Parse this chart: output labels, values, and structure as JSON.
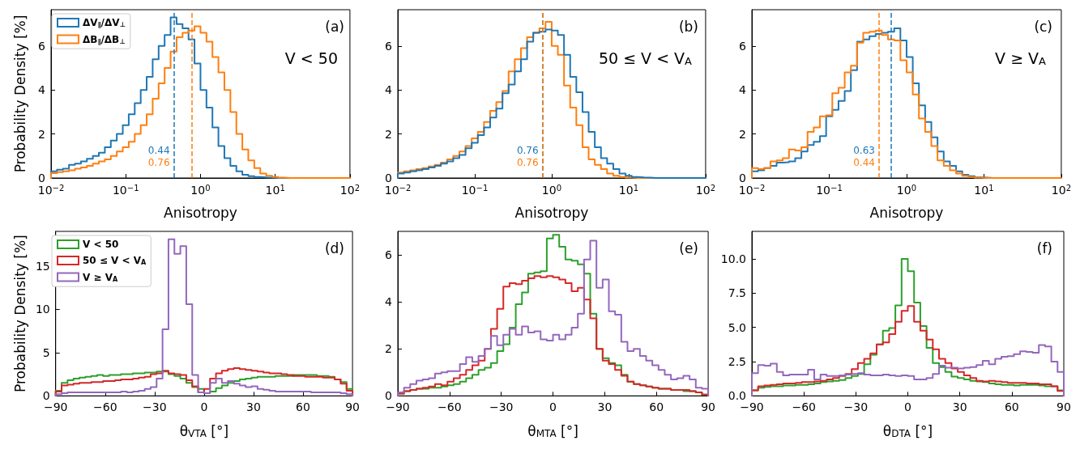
{
  "chart_data": [
    {
      "type": "histogram",
      "ylabel": "Probability Density [%]",
      "xlabel": "Anisotropy",
      "log": "x",
      "legend": "top left",
      "xlim": [
        0.01,
        100
      ],
      "xticks": [
        {
          "value": 0.01,
          "label": "10$^{−2}$"
        },
        {
          "value": 0.1,
          "label": "10$^{−1}$"
        },
        {
          "value": 1,
          "label": "10$^{0}$"
        },
        {
          "value": 10,
          "label": "10$^{1}$"
        },
        {
          "value": 100,
          "label": "10$^{2}$"
        }
      ],
      "ylim": [
        0,
        7.65
      ],
      "yticks": [
        0,
        2,
        4,
        6
      ],
      "bins": [
        0.01,
        0.01202,
        0.01445,
        0.01738,
        0.02089,
        0.02512,
        0.0302,
        0.03631,
        0.04365,
        0.05248,
        0.0631,
        0.07586,
        0.0912,
        0.1096,
        0.1318,
        0.1585,
        0.1905,
        0.2291,
        0.2754,
        0.3311,
        0.3981,
        0.4786,
        0.5754,
        0.6918,
        0.8318,
        1,
        1.202,
        1.445,
        1.738,
        2.089,
        2.512,
        3.02,
        3.631,
        4.365,
        5.248,
        6.31,
        7.586,
        9.12,
        10.96,
        13.18,
        15.85,
        19.05,
        22.91,
        27.54,
        33.11,
        39.81,
        47.86,
        57.54,
        69.18,
        83.18,
        100
      ],
      "series": [
        {
          "name": "ΔV$_{∥}$/ΔV$_{⊥}$",
          "color": "#1f77b4",
          "values": [
            0.3,
            0.38,
            0.42,
            0.6,
            0.65,
            0.75,
            0.87,
            1.0,
            1.15,
            1.4,
            1.7,
            2.0,
            2.4,
            2.9,
            3.4,
            4.0,
            4.6,
            5.4,
            6.0,
            6.5,
            7.3,
            7.0,
            6.8,
            6.3,
            5.2,
            4.0,
            3.2,
            2.3,
            1.45,
            0.9,
            0.55,
            0.3,
            0.15,
            0.08,
            0.05,
            0.03,
            0.02,
            0,
            0,
            0,
            0,
            0,
            0,
            0,
            0,
            0,
            0,
            0,
            0,
            0
          ]
        },
        {
          "name": "ΔB$_{∥}$/ΔB$_{⊥}$",
          "color": "#ff7f0e",
          "values": [
            0.22,
            0.27,
            0.3,
            0.35,
            0.42,
            0.48,
            0.55,
            0.65,
            0.75,
            0.85,
            1.0,
            1.2,
            1.4,
            1.65,
            2.0,
            2.4,
            2.9,
            3.6,
            4.3,
            5.0,
            5.75,
            6.4,
            6.6,
            6.7,
            6.9,
            6.6,
            6.2,
            5.5,
            4.8,
            4.0,
            3.0,
            2.0,
            1.3,
            0.8,
            0.45,
            0.2,
            0.1,
            0.05,
            0.02,
            0,
            0,
            0,
            0,
            0,
            0,
            0,
            0,
            0,
            0,
            0
          ]
        }
      ],
      "ref_lines": [
        {
          "axis": "x",
          "value": 0.44,
          "label": "0.44",
          "color": "#1f77b4",
          "line_style": "dashed"
        },
        {
          "axis": "x",
          "value": 0.76,
          "label": "0.76",
          "color": "#ff7f0e",
          "line_style": "dashed"
        }
      ],
      "annotations": [
        "(a)",
        "V < 50"
      ]
    },
    {
      "type": "histogram",
      "xlabel": "Anisotropy",
      "log": "x",
      "xlim": [
        0.01,
        100
      ],
      "xticks": [
        {
          "value": 0.01,
          "label": "10$^{−2}$"
        },
        {
          "value": 0.1,
          "label": "10$^{−1}$"
        },
        {
          "value": 1,
          "label": "10$^{0}$"
        },
        {
          "value": 10,
          "label": "10$^{1}$"
        },
        {
          "value": 100,
          "label": "10$^{2}$"
        }
      ],
      "ylim": [
        0,
        7.65
      ],
      "yticks": [
        0,
        2,
        4,
        6
      ],
      "bins": [
        0.01,
        0.01202,
        0.01445,
        0.01738,
        0.02089,
        0.02512,
        0.0302,
        0.03631,
        0.04365,
        0.05248,
        0.0631,
        0.07586,
        0.0912,
        0.1096,
        0.1318,
        0.1585,
        0.1905,
        0.2291,
        0.2754,
        0.3311,
        0.3981,
        0.4786,
        0.5754,
        0.6918,
        0.8318,
        1,
        1.202,
        1.445,
        1.738,
        2.089,
        2.512,
        3.02,
        3.631,
        4.365,
        5.248,
        6.31,
        7.586,
        9.12,
        10.96,
        13.18,
        15.85,
        19.05,
        22.91,
        27.54,
        33.11,
        39.81,
        47.86,
        57.54,
        69.18,
        83.18,
        100
      ],
      "series": [
        {
          "color": "#ff7f0e",
          "values": [
            0.25,
            0.3,
            0.35,
            0.4,
            0.45,
            0.52,
            0.6,
            0.7,
            0.85,
            1.0,
            1.2,
            1.45,
            1.8,
            2.1,
            2.55,
            3.05,
            3.45,
            3.95,
            4.85,
            5.4,
            5.9,
            6.4,
            6.6,
            6.8,
            7.1,
            6.0,
            5.6,
            4.2,
            3.2,
            2.4,
            1.4,
            0.85,
            0.6,
            0.4,
            0.2,
            0.1,
            0.05,
            0.02,
            0,
            0,
            0,
            0,
            0,
            0,
            0,
            0,
            0,
            0,
            0,
            0
          ]
        },
        {
          "color": "#1f77b4",
          "values": [
            0.2,
            0.25,
            0.3,
            0.35,
            0.4,
            0.48,
            0.55,
            0.65,
            0.75,
            0.9,
            1.05,
            1.35,
            1.6,
            1.95,
            2.3,
            2.75,
            3.15,
            3.85,
            4.25,
            4.85,
            5.4,
            6.2,
            6.6,
            6.65,
            6.75,
            6.7,
            6.5,
            5.6,
            4.6,
            3.9,
            3.0,
            2.1,
            1.4,
            0.9,
            0.65,
            0.4,
            0.2,
            0.1,
            0.05,
            0.03,
            0.02,
            0,
            0,
            0,
            0,
            0,
            0,
            0,
            0,
            0
          ]
        }
      ],
      "ref_lines": [
        {
          "axis": "x",
          "value": 0.76,
          "label": "0.76",
          "color": "#1f77b4",
          "line_style": "dashed"
        },
        {
          "axis": "x",
          "value": 0.76,
          "label": "0.76",
          "color": "#ff7f0e",
          "line_style": "dashed"
        }
      ],
      "annotations": [
        "(b)",
        "50 ≤ V < V$_{A}$"
      ]
    },
    {
      "type": "histogram",
      "xlabel": "Anisotropy",
      "log": "x",
      "xlim": [
        0.01,
        100
      ],
      "xticks": [
        {
          "value": 0.01,
          "label": "10$^{−2}$"
        },
        {
          "value": 0.1,
          "label": "10$^{−1}$"
        },
        {
          "value": 1,
          "label": "10$^{0}$"
        },
        {
          "value": 10,
          "label": "10$^{1}$"
        },
        {
          "value": 100,
          "label": "10$^{2}$"
        }
      ],
      "ylim": [
        0,
        7.65
      ],
      "yticks": [
        0,
        2,
        4,
        6
      ],
      "bins": [
        0.01,
        0.01202,
        0.01445,
        0.01738,
        0.02089,
        0.02512,
        0.0302,
        0.03631,
        0.04365,
        0.05248,
        0.0631,
        0.07586,
        0.0912,
        0.1096,
        0.1318,
        0.1585,
        0.1905,
        0.2291,
        0.2754,
        0.3311,
        0.3981,
        0.4786,
        0.5754,
        0.6918,
        0.8318,
        1,
        1.202,
        1.445,
        1.738,
        2.089,
        2.512,
        3.02,
        3.631,
        4.365,
        5.248,
        6.31,
        7.586,
        9.12,
        10.96,
        13.18,
        15.85,
        19.05,
        22.91,
        27.54,
        33.11,
        39.81,
        47.86,
        57.54,
        69.18,
        83.18,
        100
      ],
      "series": [
        {
          "color": "#1f77b4",
          "values": [
            0.3,
            0.35,
            0.45,
            0.55,
            0.7,
            0.72,
            0.75,
            0.9,
            1.2,
            1.5,
            1.65,
            1.9,
            2.8,
            3.1,
            3.5,
            3.95,
            4.9,
            6.2,
            6.3,
            6.45,
            6.55,
            6.6,
            6.65,
            6.8,
            6.25,
            5.5,
            4.3,
            3.3,
            2.55,
            1.85,
            1.2,
            0.75,
            0.55,
            0.3,
            0.15,
            0.08,
            0.03,
            0.02,
            0,
            0,
            0,
            0,
            0,
            0,
            0,
            0,
            0,
            0,
            0,
            0
          ]
        },
        {
          "color": "#ff7f0e",
          "values": [
            0.45,
            0.4,
            0.45,
            0.75,
            0.8,
            0.9,
            1.3,
            1.25,
            1.4,
            2.1,
            2.3,
            2.8,
            2.85,
            3.85,
            4.1,
            4.8,
            5.1,
            6.15,
            6.6,
            6.65,
            6.7,
            6.5,
            6.3,
            6.25,
            5.35,
            4.8,
            3.8,
            2.7,
            2.1,
            1.45,
            0.8,
            0.55,
            0.35,
            0.2,
            0.1,
            0.05,
            0.02,
            0,
            0,
            0,
            0,
            0,
            0,
            0,
            0,
            0,
            0,
            0,
            0,
            0
          ]
        }
      ],
      "ref_lines": [
        {
          "axis": "x",
          "value": 0.63,
          "label": "0.63",
          "color": "#1f77b4",
          "line_style": "dashed"
        },
        {
          "axis": "x",
          "value": 0.44,
          "label": "0.44",
          "color": "#ff7f0e",
          "line_style": "dashed"
        }
      ],
      "annotations": [
        "(c)",
        "V ≥ V$_{A}$"
      ]
    },
    {
      "type": "histogram",
      "ylabel": "Probability Density [%]",
      "xlabel": "θ$_{VTA}$ [°]",
      "legend": "top left",
      "xlim": [
        -90,
        90
      ],
      "xticks": [
        {
          "value": -90,
          "label": "−90"
        },
        {
          "value": -60,
          "label": "−60"
        },
        {
          "value": -30,
          "label": "−30"
        },
        0,
        30,
        60,
        90
      ],
      "ylim": [
        0,
        19
      ],
      "yticks": [
        0,
        5,
        10,
        15
      ],
      "bins": [
        -90,
        -86.4,
        -82.8,
        -79.2,
        -75.6,
        -72,
        -68.4,
        -64.8,
        -61.2,
        -57.6,
        -54,
        -50.4,
        -46.8,
        -43.2,
        -39.6,
        -36,
        -32.4,
        -28.8,
        -25.2,
        -21.6,
        -18,
        -14.4,
        -10.8,
        -7.2,
        -3.6,
        0,
        3.6,
        7.2,
        10.8,
        14.4,
        18,
        21.6,
        25.2,
        28.8,
        32.4,
        36,
        39.6,
        43.2,
        46.8,
        50.4,
        54,
        57.6,
        61.2,
        64.8,
        68.4,
        72,
        75.6,
        79.2,
        82.8,
        86.4,
        90
      ],
      "series": [
        {
          "name": "V < 50",
          "color": "#2ca02c",
          "values": [
            0.6,
            1.5,
            1.8,
            2.0,
            2.1,
            2.2,
            2.3,
            2.4,
            2.3,
            2.4,
            2.4,
            2.5,
            2.5,
            2.6,
            2.6,
            2.7,
            2.7,
            2.8,
            2.8,
            2.5,
            2.3,
            2.0,
            1.5,
            1.0,
            0.8,
            0.3,
            0.5,
            0.9,
            1.2,
            1.5,
            1.7,
            1.9,
            2.0,
            2.1,
            2.2,
            2.2,
            2.2,
            2.3,
            2.3,
            2.3,
            2.4,
            2.4,
            2.4,
            2.4,
            2.3,
            2.3,
            2.2,
            1.9,
            1.6,
            0.8
          ]
        },
        {
          "name": "50 ≤ V < V$_{A}$",
          "color": "#d62728",
          "values": [
            0.5,
            1.2,
            1.3,
            1.4,
            1.5,
            1.5,
            1.6,
            1.6,
            1.7,
            1.7,
            1.8,
            1.9,
            1.9,
            2.0,
            2.1,
            2.2,
            2.5,
            2.6,
            2.9,
            2.6,
            2.5,
            2.4,
            1.8,
            1.1,
            0.4,
            0.8,
            2.0,
            2.6,
            2.9,
            3.1,
            3.2,
            3.1,
            3.0,
            2.9,
            2.8,
            2.7,
            2.6,
            2.6,
            2.5,
            2.4,
            2.3,
            2.3,
            2.2,
            2.2,
            2.2,
            2.1,
            2.1,
            1.9,
            1.4,
            0.6
          ]
        },
        {
          "name": "V ≥ V$_{A}$",
          "color": "#9467bd",
          "values": [
            0.2,
            0.3,
            0.4,
            0.4,
            0.4,
            0.4,
            0.4,
            0.4,
            0.4,
            0.4,
            0.4,
            0.5,
            0.4,
            0.5,
            0.6,
            0.8,
            1.0,
            2.0,
            7.7,
            18.1,
            16.4,
            17.3,
            10.6,
            2.4,
            0.4,
            0.3,
            1.5,
            2.0,
            1.5,
            1.7,
            1.4,
            1.2,
            1.0,
            1.1,
            0.8,
            0.7,
            0.6,
            0.5,
            0.5,
            0.5,
            0.5,
            0.5,
            0.5,
            0.4,
            0.4,
            0.4,
            0.4,
            0.4,
            0.3,
            0.2
          ]
        }
      ],
      "annotations": [
        "(d)"
      ]
    },
    {
      "type": "histogram",
      "xlabel": "θ$_{MTA}$ [°]",
      "xlim": [
        -90,
        90
      ],
      "xticks": [
        {
          "value": -90,
          "label": "−90"
        },
        {
          "value": -60,
          "label": "−60"
        },
        {
          "value": -30,
          "label": "−30"
        },
        0,
        30,
        60,
        90
      ],
      "ylim": [
        0,
        7
      ],
      "yticks": [
        0,
        2,
        4,
        6
      ],
      "bins": [
        -90,
        -86.4,
        -82.8,
        -79.2,
        -75.6,
        -72,
        -68.4,
        -64.8,
        -61.2,
        -57.6,
        -54,
        -50.4,
        -46.8,
        -43.2,
        -39.6,
        -36,
        -32.4,
        -28.8,
        -25.2,
        -21.6,
        -18,
        -14.4,
        -10.8,
        -7.2,
        -3.6,
        0,
        3.6,
        7.2,
        10.8,
        14.4,
        18,
        21.6,
        25.2,
        28.8,
        32.4,
        36,
        39.6,
        43.2,
        46.8,
        50.4,
        54,
        57.6,
        61.2,
        64.8,
        68.4,
        72,
        75.6,
        79.2,
        82.8,
        86.4,
        90
      ],
      "series": [
        {
          "color": "#2ca02c",
          "values": [
            0.1,
            0.2,
            0.25,
            0.3,
            0.3,
            0.35,
            0.35,
            0.4,
            0.45,
            0.5,
            0.6,
            0.75,
            0.9,
            1.1,
            1.2,
            1.4,
            1.9,
            2.2,
            2.9,
            3.9,
            4.4,
            5.2,
            5.25,
            5.3,
            6.7,
            6.85,
            6.35,
            5.8,
            5.75,
            5.6,
            5.2,
            3.5,
            2.0,
            1.6,
            1.4,
            1.3,
            0.9,
            0.6,
            0.5,
            0.45,
            0.4,
            0.35,
            0.3,
            0.3,
            0.25,
            0.25,
            0.2,
            0.2,
            0.15,
            0.05
          ]
        },
        {
          "color": "#d62728",
          "values": [
            0.1,
            0.2,
            0.25,
            0.3,
            0.35,
            0.4,
            0.5,
            0.45,
            0.6,
            0.75,
            0.9,
            1.1,
            1.3,
            1.5,
            2.0,
            2.85,
            3.7,
            4.65,
            4.8,
            4.75,
            4.9,
            5.0,
            5.1,
            5.05,
            5.1,
            5.05,
            4.95,
            4.8,
            4.45,
            4.6,
            4.1,
            3.3,
            2.0,
            1.5,
            1.35,
            1.1,
            0.85,
            0.6,
            0.5,
            0.45,
            0.4,
            0.35,
            0.3,
            0.3,
            0.25,
            0.25,
            0.25,
            0.2,
            0.15,
            0.05
          ]
        },
        {
          "color": "#9467bd",
          "values": [
            0.15,
            0.35,
            0.5,
            0.65,
            0.7,
            0.75,
            0.95,
            1.0,
            1.05,
            1.05,
            1.35,
            1.65,
            1.45,
            1.7,
            2.0,
            2.55,
            2.15,
            2.6,
            2.85,
            2.6,
            2.95,
            2.7,
            2.75,
            2.4,
            2.35,
            2.6,
            2.4,
            2.6,
            2.9,
            3.5,
            5.8,
            6.6,
            4.6,
            4.95,
            3.6,
            3.45,
            2.3,
            1.9,
            2.0,
            1.7,
            1.5,
            1.3,
            1.1,
            0.9,
            0.7,
            0.75,
            0.85,
            0.7,
            0.35,
            0.3
          ]
        }
      ],
      "annotations": [
        "(e)"
      ]
    },
    {
      "type": "histogram",
      "xlabel": "θ$_{DTA}$ [°]",
      "xlim": [
        -90,
        90
      ],
      "xticks": [
        {
          "value": -90,
          "label": "−90"
        },
        {
          "value": -60,
          "label": "−60"
        },
        {
          "value": -30,
          "label": "−30"
        },
        0,
        30,
        60,
        90
      ],
      "ylim": [
        0,
        12
      ],
      "yticks": [
        {
          "value": 0,
          "label": "0.0"
        },
        {
          "value": 2.5,
          "label": "2.5"
        },
        {
          "value": 5,
          "label": "5.0"
        },
        {
          "value": 7.5,
          "label": "7.5"
        },
        {
          "value": 10,
          "label": "10.0"
        }
      ],
      "bins": [
        -90,
        -86.4,
        -82.8,
        -79.2,
        -75.6,
        -72,
        -68.4,
        -64.8,
        -61.2,
        -57.6,
        -54,
        -50.4,
        -46.8,
        -43.2,
        -39.6,
        -36,
        -32.4,
        -28.8,
        -25.2,
        -21.6,
        -18,
        -14.4,
        -10.8,
        -7.2,
        -3.6,
        0,
        3.6,
        7.2,
        10.8,
        14.4,
        18,
        21.6,
        25.2,
        28.8,
        32.4,
        36,
        39.6,
        43.2,
        46.8,
        50.4,
        54,
        57.6,
        61.2,
        64.8,
        68.4,
        72,
        75.6,
        79.2,
        82.8,
        86.4,
        90
      ],
      "series": [
        {
          "color": "#2ca02c",
          "values": [
            0.4,
            0.6,
            0.65,
            0.7,
            0.7,
            0.75,
            0.75,
            0.8,
            0.8,
            0.85,
            0.9,
            1.0,
            1.05,
            1.1,
            1.15,
            1.3,
            1.45,
            1.6,
            2.3,
            3.0,
            3.75,
            4.75,
            4.95,
            6.6,
            10.0,
            9.1,
            6.8,
            5.1,
            3.5,
            2.4,
            2.1,
            1.75,
            1.4,
            1.3,
            1.2,
            1.1,
            1.05,
            1.0,
            0.9,
            0.85,
            0.8,
            0.8,
            0.75,
            0.8,
            0.8,
            0.8,
            0.75,
            0.7,
            0.7,
            0.4
          ]
        },
        {
          "color": "#d62728",
          "values": [
            0.4,
            0.7,
            0.75,
            0.8,
            0.85,
            0.9,
            0.9,
            0.95,
            1.0,
            1.0,
            1.05,
            1.1,
            1.2,
            1.3,
            1.45,
            1.6,
            1.95,
            2.4,
            2.7,
            3.1,
            3.75,
            3.9,
            4.5,
            5.4,
            6.2,
            6.55,
            5.4,
            4.75,
            4.1,
            3.4,
            2.7,
            2.4,
            2.0,
            1.75,
            1.5,
            1.3,
            1.1,
            1.05,
            1.1,
            1.05,
            1.0,
            0.95,
            0.95,
            0.95,
            0.9,
            0.9,
            0.85,
            0.85,
            0.7,
            0.35
          ]
        },
        {
          "color": "#9467bd",
          "values": [
            1.65,
            2.25,
            2.2,
            2.35,
            1.75,
            1.5,
            1.55,
            1.55,
            1.55,
            1.9,
            1.2,
            1.55,
            1.45,
            1.45,
            1.5,
            1.55,
            1.6,
            1.65,
            1.55,
            1.5,
            1.5,
            1.55,
            1.5,
            1.45,
            1.5,
            1.45,
            1.2,
            1.2,
            1.3,
            1.6,
            2.2,
            2.05,
            2.05,
            2.0,
            2.05,
            2.1,
            2.25,
            2.55,
            2.3,
            2.7,
            2.85,
            2.9,
            3.05,
            3.25,
            3.2,
            3.15,
            3.7,
            3.6,
            2.5,
            1.75
          ]
        }
      ],
      "annotations": [
        "(f)"
      ]
    }
  ]
}
